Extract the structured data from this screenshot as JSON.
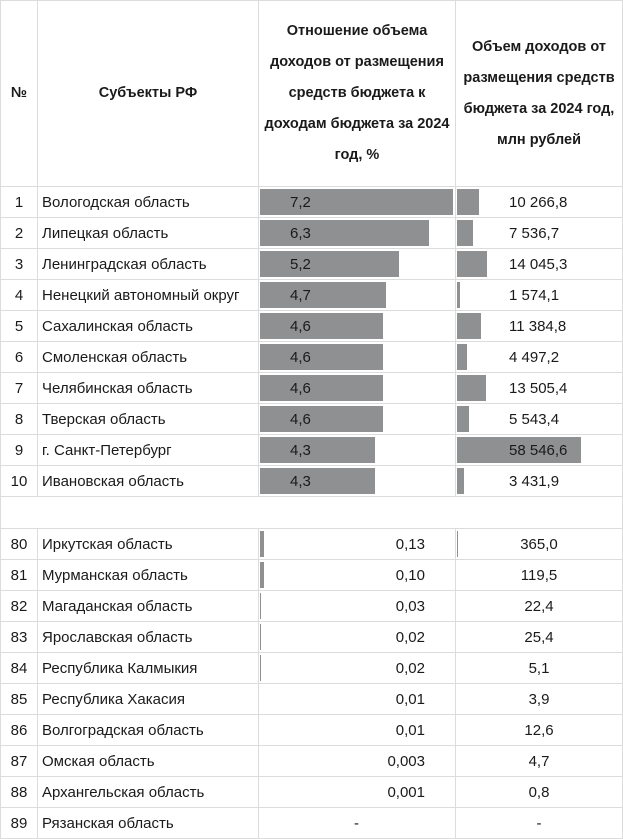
{
  "header": {
    "num": "№",
    "subject": "Субъекты РФ",
    "ratio": "Отношение объема доходов от размещения средств бюджета к доходам бюджета за 2024 год, %",
    "volume": "Объем доходов от размещения средств бюджета за 2024 год, млн рублей"
  },
  "colors": {
    "bar": "#8f9092",
    "border": "#dcdcdc"
  },
  "top_rows": [
    {
      "n": "1",
      "name": "Вологодская область",
      "ratio": "7,2",
      "ratio_v": 7.2,
      "vol": "10 266,8",
      "vol_v": 10266.8
    },
    {
      "n": "2",
      "name": "Липецкая область",
      "ratio": "6,3",
      "ratio_v": 6.3,
      "vol": "7 536,7",
      "vol_v": 7536.7
    },
    {
      "n": "3",
      "name": "Ленинградская область",
      "ratio": "5,2",
      "ratio_v": 5.2,
      "vol": "14 045,3",
      "vol_v": 14045.3
    },
    {
      "n": "4",
      "name": "Ненецкий автономный округ",
      "ratio": "4,7",
      "ratio_v": 4.7,
      "vol": "1 574,1",
      "vol_v": 1574.1
    },
    {
      "n": "5",
      "name": "Сахалинская область",
      "ratio": "4,6",
      "ratio_v": 4.6,
      "vol": "11 384,8",
      "vol_v": 11384.8
    },
    {
      "n": "6",
      "name": "Смоленская область",
      "ratio": "4,6",
      "ratio_v": 4.6,
      "vol": "4 497,2",
      "vol_v": 4497.2
    },
    {
      "n": "7",
      "name": "Челябинская область",
      "ratio": "4,6",
      "ratio_v": 4.6,
      "vol": "13 505,4",
      "vol_v": 13505.4
    },
    {
      "n": "8",
      "name": "Тверская область",
      "ratio": "4,6",
      "ratio_v": 4.6,
      "vol": "5 543,4",
      "vol_v": 5543.4
    },
    {
      "n": "9",
      "name": "г. Санкт-Петербург",
      "ratio": "4,3",
      "ratio_v": 4.3,
      "vol": "58 546,6",
      "vol_v": 58546.6
    },
    {
      "n": "10",
      "name": "Ивановская область",
      "ratio": "4,3",
      "ratio_v": 4.3,
      "vol": "3 431,9",
      "vol_v": 3431.9
    }
  ],
  "bottom_rows": [
    {
      "n": "80",
      "name": "Иркутская область",
      "ratio": "0,13",
      "ratio_v": 0.13,
      "vol": "365,0",
      "vol_v": 365.0
    },
    {
      "n": "81",
      "name": "Мурманская область",
      "ratio": "0,10",
      "ratio_v": 0.1,
      "vol": "119,5",
      "vol_v": 119.5
    },
    {
      "n": "82",
      "name": "Магаданская область",
      "ratio": "0,03",
      "ratio_v": 0.03,
      "vol": "22,4",
      "vol_v": 22.4
    },
    {
      "n": "83",
      "name": "Ярославская область",
      "ratio": "0,02",
      "ratio_v": 0.02,
      "vol": "25,4",
      "vol_v": 25.4
    },
    {
      "n": "84",
      "name": "Республика Калмыкия",
      "ratio": "0,02",
      "ratio_v": 0.02,
      "vol": "5,1",
      "vol_v": 5.1
    },
    {
      "n": "85",
      "name": "Республика Хакасия",
      "ratio": "0,01",
      "ratio_v": 0.01,
      "vol": "3,9",
      "vol_v": 3.9
    },
    {
      "n": "86",
      "name": "Волгоградская область",
      "ratio": "0,01",
      "ratio_v": 0.01,
      "vol": "12,6",
      "vol_v": 12.6
    },
    {
      "n": "87",
      "name": "Омская область",
      "ratio": "0,003",
      "ratio_v": 0.003,
      "vol": "4,7",
      "vol_v": 4.7
    },
    {
      "n": "88",
      "name": "Архангельская область",
      "ratio": "0,001",
      "ratio_v": 0.001,
      "vol": "0,8",
      "vol_v": 0.8
    },
    {
      "n": "89",
      "name": "Рязанская область",
      "ratio": "-",
      "ratio_v": null,
      "vol": "-",
      "vol_v": null
    }
  ]
}
